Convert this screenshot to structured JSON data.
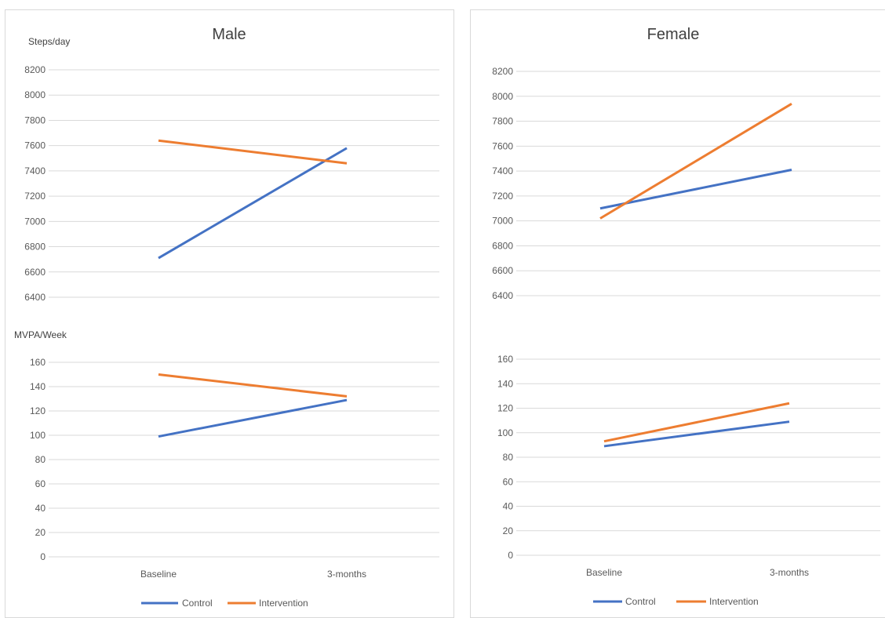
{
  "colors": {
    "control": "#4472C4",
    "intervention": "#ED7D31",
    "grid": "#d9d9d9"
  },
  "legend": [
    "Control",
    "Intervention"
  ],
  "chart_data": [
    {
      "type": "line",
      "title": "Male",
      "ylabel": "Steps/day",
      "categories": [
        "Baseline",
        "3-months"
      ],
      "ylim": [
        6400,
        8200
      ],
      "yticks": [
        "6400",
        "6600",
        "6800",
        "7000",
        "7200",
        "7400",
        "7600",
        "7800",
        "8000",
        "8200"
      ],
      "series": [
        {
          "name": "Control",
          "values": [
            6710,
            7580
          ]
        },
        {
          "name": "Intervention",
          "values": [
            7640,
            7460
          ]
        }
      ]
    },
    {
      "type": "line",
      "title": "Female",
      "ylabel": "",
      "categories": [
        "Baseline",
        "3-months"
      ],
      "ylim": [
        6400,
        8200
      ],
      "yticks": [
        "6400",
        "6600",
        "6800",
        "7000",
        "7200",
        "7400",
        "7600",
        "7800",
        "8000",
        "8200"
      ],
      "series": [
        {
          "name": "Control",
          "values": [
            7100,
            7410
          ]
        },
        {
          "name": "Intervention",
          "values": [
            7020,
            7940
          ]
        }
      ]
    },
    {
      "type": "line",
      "title": "",
      "ylabel": "MVPA/Week",
      "categories": [
        "Baseline",
        "3-months"
      ],
      "ylim": [
        0,
        160
      ],
      "yticks": [
        "0",
        "20",
        "40",
        "60",
        "80",
        "100",
        "120",
        "140",
        "160"
      ],
      "series": [
        {
          "name": "Control",
          "values": [
            99,
            129
          ]
        },
        {
          "name": "Intervention",
          "values": [
            150,
            132
          ]
        }
      ]
    },
    {
      "type": "line",
      "title": "",
      "ylabel": "",
      "categories": [
        "Baseline",
        "3-months"
      ],
      "ylim": [
        0,
        160
      ],
      "yticks": [
        "0",
        "20",
        "40",
        "60",
        "80",
        "100",
        "120",
        "140",
        "160"
      ],
      "series": [
        {
          "name": "Control",
          "values": [
            89,
            109
          ]
        },
        {
          "name": "Intervention",
          "values": [
            93,
            124
          ]
        }
      ]
    }
  ]
}
